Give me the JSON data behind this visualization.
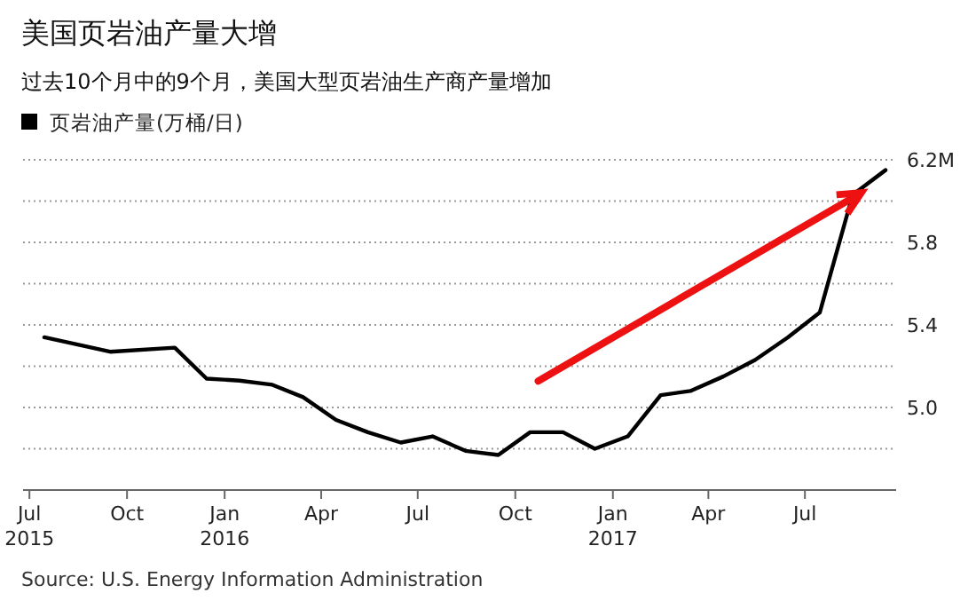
{
  "chart_data": {
    "type": "line",
    "title": "美国页岩油产量大增",
    "subtitle": "过去10个月中的9个月，美国大型页岩油生产商产量增加",
    "x": [
      "2015-07-15",
      "2015-09-15",
      "2015-11-15",
      "2015-12-15",
      "2016-01-15",
      "2016-02-15",
      "2016-03-15",
      "2016-04-15",
      "2016-05-15",
      "2016-06-15",
      "2016-07-15",
      "2016-08-15",
      "2016-09-15",
      "2016-10-15",
      "2016-11-15",
      "2016-12-15",
      "2017-01-15",
      "2017-02-15",
      "2017-03-15",
      "2017-04-15",
      "2017-05-15",
      "2017-06-15",
      "2017-07-15",
      "2017-08-15",
      "2017-09-15"
    ],
    "series": [
      {
        "name": "页岩油产量(万桶/日)",
        "color": "#000000",
        "values": [
          5.34,
          5.27,
          5.29,
          5.14,
          5.13,
          5.11,
          5.05,
          4.94,
          4.88,
          4.83,
          4.86,
          4.79,
          4.77,
          4.88,
          4.88,
          4.8,
          4.86,
          5.06,
          5.08,
          5.15,
          5.23,
          5.34,
          5.46,
          6.03,
          6.15
        ]
      }
    ],
    "xlim": [
      "2015-06-25",
      "2017-09-25"
    ],
    "xticks": [
      {
        "value": "2015-07-01",
        "label": "Jul\n2015"
      },
      {
        "value": "2015-10-01",
        "label": "Oct"
      },
      {
        "value": "2016-01-01",
        "label": "Jan\n2016"
      },
      {
        "value": "2016-04-01",
        "label": "Apr"
      },
      {
        "value": "2016-07-01",
        "label": "Jul"
      },
      {
        "value": "2016-10-01",
        "label": "Oct"
      },
      {
        "value": "2017-01-01",
        "label": "Jan\n2017"
      },
      {
        "value": "2017-04-01",
        "label": "Apr"
      },
      {
        "value": "2017-07-01",
        "label": "Jul"
      }
    ],
    "ylim": [
      4.6,
      6.2
    ],
    "yticks": [
      {
        "value": 4.8,
        "label": null
      },
      {
        "value": 5.0,
        "label": "5.0"
      },
      {
        "value": 5.2,
        "label": null
      },
      {
        "value": 5.4,
        "label": "5.4"
      },
      {
        "value": 5.6,
        "label": null
      },
      {
        "value": 5.8,
        "label": "5.8"
      },
      {
        "value": 6.0,
        "label": null
      },
      {
        "value": 6.2,
        "label": "6.2M"
      }
    ],
    "grid": "y",
    "legend": "top left",
    "marker": "none",
    "line_style": "solid",
    "annotations": [
      "Source: U.S. Energy Information Administration"
    ]
  }
}
